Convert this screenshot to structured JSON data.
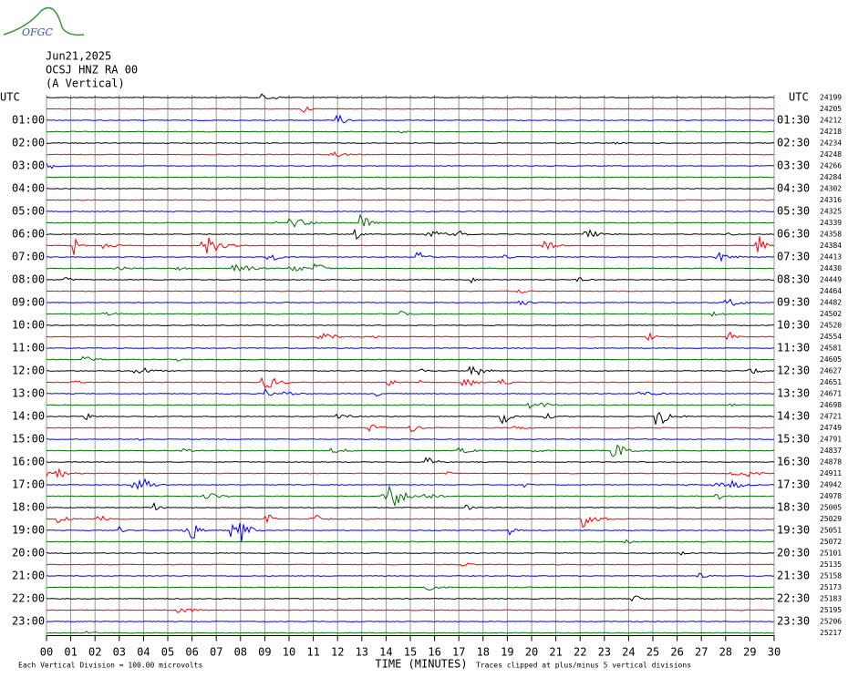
{
  "header": {
    "logo": "OFGC",
    "date": "Jun21,2025",
    "station": "OCSJ HNZ RA 00",
    "component": "(A Vertical)"
  },
  "left_labels": [
    "UTC",
    "01:00",
    "02:00",
    "03:00",
    "04:00",
    "05:00",
    "06:00",
    "07:00",
    "08:00",
    "09:00",
    "10:00",
    "11:00",
    "12:00",
    "13:00",
    "14:00",
    "15:00",
    "16:00",
    "17:00",
    "18:00",
    "19:00",
    "20:00",
    "21:00",
    "22:00",
    "23:00"
  ],
  "right_labels": [
    "UTC",
    "01:30",
    "02:30",
    "03:30",
    "04:30",
    "05:30",
    "06:30",
    "07:30",
    "08:30",
    "09:30",
    "10:30",
    "11:30",
    "12:30",
    "13:30",
    "14:30",
    "15:30",
    "16:30",
    "17:30",
    "18:30",
    "19:30",
    "20:30",
    "21:30",
    "22:30",
    "23:30"
  ],
  "counts": [
    "24199",
    "24205",
    "24212",
    "24218",
    "24234",
    "24248",
    "24266",
    "24284",
    "24302",
    "24316",
    "24325",
    "24339",
    "24358",
    "24384",
    "24413",
    "24430",
    "24449",
    "24464",
    "24482",
    "24502",
    "24520",
    "24554",
    "24581",
    "24605",
    "24627",
    "24651",
    "24671",
    "24698",
    "24721",
    "24749",
    "24791",
    "24837",
    "24878",
    "24911",
    "24942",
    "24978",
    "25005",
    "25029",
    "25051",
    "25072",
    "25101",
    "25135",
    "25158",
    "25173",
    "25183",
    "25195",
    "25206",
    "25217"
  ],
  "x_ticks": [
    "00",
    "01",
    "02",
    "03",
    "04",
    "05",
    "06",
    "07",
    "08",
    "09",
    "10",
    "11",
    "12",
    "13",
    "14",
    "15",
    "16",
    "17",
    "18",
    "19",
    "20",
    "21",
    "22",
    "23",
    "24",
    "25",
    "26",
    "27",
    "28",
    "29",
    "30"
  ],
  "x_label": "TIME (MINUTES)",
  "scale_note": "Each Vertical Division =  100.00 microvolts",
  "clip_note": "Traces clipped at plus/minus 5 vertical divisions"
}
